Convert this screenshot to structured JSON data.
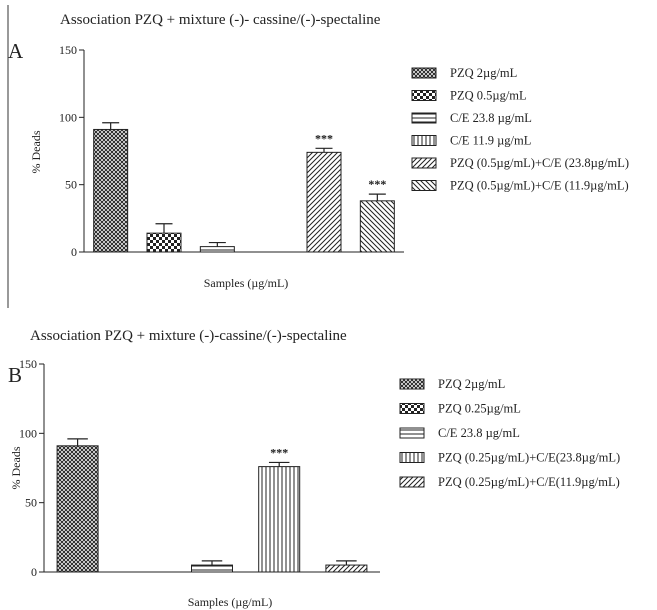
{
  "chart_data": [
    {
      "type": "bar",
      "panel": "A",
      "title": "Association PZQ + mixture (-)- cassine/(-)-spectaline",
      "xlabel": "Samples (µg/mL)",
      "ylabel": "% Deads",
      "ylim": [
        0,
        150
      ],
      "yticks": [
        "0",
        "50",
        "100",
        "150"
      ],
      "grid": false,
      "legend_position": "right",
      "categories": [
        "PZQ 2µg/mL",
        "PZQ 0.5µg/mL",
        "C/E 23.8 µg/mL",
        "C/E 11.9 µg/mL",
        "PZQ (0.5µg/mL)+C/E (23.8µg/mL)",
        "PZQ (0.5µg/mL)+C/E (11.9µg/mL)"
      ],
      "values": [
        91,
        14,
        4,
        0,
        74,
        38
      ],
      "errors": [
        5,
        7,
        3,
        0,
        3,
        5
      ],
      "annotations": [
        "",
        "",
        "",
        "",
        "***",
        "***"
      ],
      "patterns": [
        "crosshatch",
        "checker",
        "hlines",
        "vlines",
        "diag-right",
        "diag-left"
      ]
    },
    {
      "type": "bar",
      "panel": "B",
      "title": "Association PZQ + mixture (-)-cassine/(-)-spectaline",
      "xlabel": "Samples (µg/mL)",
      "ylabel": "% Deads",
      "ylim": [
        0,
        150
      ],
      "yticks": [
        "0",
        "50",
        "100",
        "150"
      ],
      "grid": false,
      "legend_position": "right",
      "categories": [
        "PZQ 2µg/mL",
        "PZQ 0.25µg/mL",
        "C/E 23.8 µg/mL",
        "PZQ (0.25µg/mL)+C/E(23.8µg/mL)",
        "PZQ (0.25µg/mL)+C/E(11.9µg/mL)"
      ],
      "values": [
        91,
        0,
        5,
        76,
        5
      ],
      "errors": [
        5,
        0,
        3,
        3,
        3
      ],
      "annotations": [
        "",
        "",
        "",
        "***",
        ""
      ],
      "patterns": [
        "crosshatch",
        "checker",
        "hlines",
        "vlines",
        "diag-right"
      ]
    }
  ]
}
